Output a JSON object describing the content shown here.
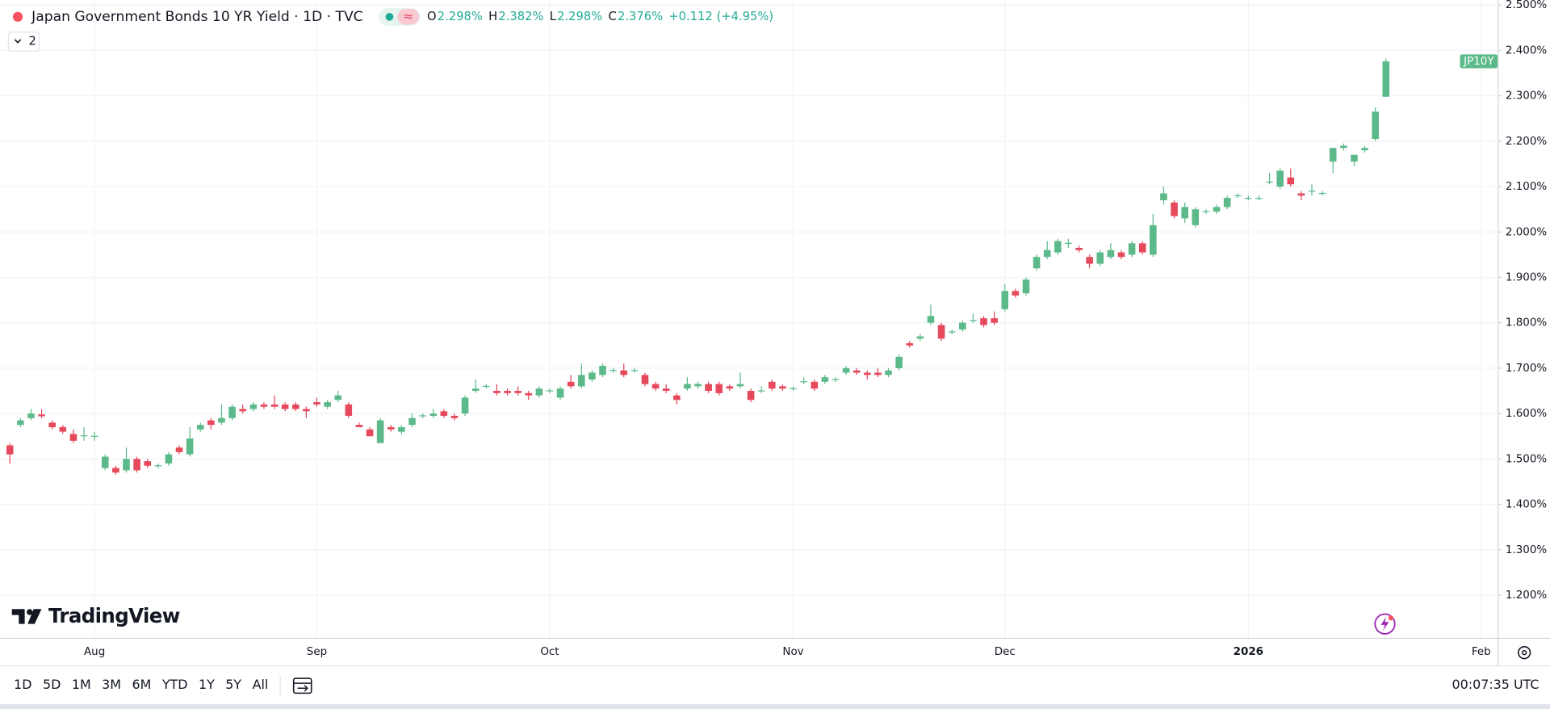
{
  "header": {
    "title": "Japan Government Bonds 10 YR Yield · 1D · TVC",
    "indicator_count": "2",
    "ohlc": [
      {
        "label": "O",
        "value": "2.298%"
      },
      {
        "label": "H",
        "value": "2.382%"
      },
      {
        "label": "L",
        "value": "2.298%"
      },
      {
        "label": "C",
        "value": "2.376%"
      }
    ],
    "change": "+0.112",
    "change_pct": "(+4.95%)"
  },
  "brand": "TradingView",
  "toolbar": {
    "ranges": [
      "1D",
      "5D",
      "1M",
      "3M",
      "6M",
      "YTD",
      "1Y",
      "5Y",
      "All"
    ],
    "clock": "00:07:35 UTC"
  },
  "chart_data": {
    "type": "candlestick",
    "symbol": "JP10Y",
    "up_color": "#5bb98a",
    "down_color": "#e5495b",
    "grid": true,
    "ylim": [
      1.106,
      2.511
    ],
    "yticks": [
      {
        "value": 1.2,
        "label": "1.200%"
      },
      {
        "value": 1.3,
        "label": "1.300%"
      },
      {
        "value": 1.4,
        "label": "1.400%"
      },
      {
        "value": 1.5,
        "label": "1.500%"
      },
      {
        "value": 1.6,
        "label": "1.600%"
      },
      {
        "value": 1.7,
        "label": "1.700%"
      },
      {
        "value": 1.8,
        "label": "1.800%"
      },
      {
        "value": 1.9,
        "label": "1.900%"
      },
      {
        "value": 2.0,
        "label": "2.000%"
      },
      {
        "value": 2.1,
        "label": "2.100%"
      },
      {
        "value": 2.2,
        "label": "2.200%"
      },
      {
        "value": 2.3,
        "label": "2.300%"
      },
      {
        "value": 2.4,
        "label": "2.400%"
      },
      {
        "value": 2.5,
        "label": "2.500%"
      }
    ],
    "categories": [
      null,
      null,
      null,
      null,
      null,
      null,
      null,
      null,
      "Aug",
      null,
      null,
      null,
      null,
      null,
      null,
      null,
      null,
      null,
      null,
      null,
      null,
      null,
      null,
      null,
      null,
      null,
      null,
      null,
      null,
      "Sep",
      null,
      null,
      null,
      null,
      null,
      null,
      null,
      null,
      null,
      null,
      null,
      null,
      null,
      null,
      null,
      null,
      null,
      null,
      null,
      null,
      null,
      "Oct",
      null,
      null,
      null,
      null,
      null,
      null,
      null,
      null,
      null,
      null,
      null,
      null,
      null,
      null,
      null,
      null,
      null,
      null,
      null,
      null,
      null,
      null,
      "Nov",
      null,
      null,
      null,
      null,
      null,
      null,
      null,
      null,
      null,
      null,
      null,
      null,
      null,
      null,
      null,
      null,
      null,
      null,
      null,
      "Dec",
      null,
      null,
      null,
      null,
      null,
      null,
      null,
      null,
      null,
      null,
      null,
      null,
      null,
      null,
      null,
      null,
      null,
      null,
      null,
      null,
      null,
      null,
      "2026",
      null,
      null,
      null,
      null,
      null,
      null,
      null,
      null,
      null,
      null,
      null,
      null,
      null,
      null,
      null,
      null,
      null,
      null,
      null,
      null,
      null,
      "Feb",
      null
    ],
    "open": [
      1.53,
      1.575,
      1.59,
      1.598,
      1.58,
      1.57,
      1.555,
      1.55,
      1.55,
      1.48,
      1.48,
      1.475,
      1.5,
      1.495,
      1.485,
      1.49,
      1.525,
      1.51,
      1.565,
      1.585,
      1.58,
      1.59,
      1.61,
      1.61,
      1.62,
      1.62,
      1.62,
      1.62,
      1.61,
      1.625,
      1.615,
      1.63,
      1.62,
      1.575,
      1.565,
      1.535,
      1.57,
      1.56,
      1.575,
      1.595,
      1.595,
      1.605,
      1.595,
      1.6,
      1.65,
      1.66,
      1.65,
      1.65,
      1.65,
      1.645,
      1.64,
      1.65,
      1.635,
      1.67,
      1.66,
      1.675,
      1.685,
      1.695,
      1.695,
      1.695,
      1.685,
      1.665,
      1.655,
      1.64,
      1.655,
      1.66,
      1.665,
      1.665,
      1.66,
      1.66,
      1.65,
      1.65,
      1.67,
      1.66,
      1.655,
      1.67,
      1.67,
      1.67,
      1.675,
      1.69,
      1.695,
      1.69,
      1.69,
      1.685,
      1.7,
      1.755,
      1.765,
      1.8,
      1.795,
      1.78,
      1.785,
      1.805,
      1.81,
      1.81,
      1.83,
      1.87,
      1.865,
      1.92,
      1.945,
      1.955,
      1.975,
      1.965,
      1.945,
      1.93,
      1.945,
      1.955,
      1.95,
      1.975,
      1.95,
      2.07,
      2.065,
      2.03,
      2.015,
      2.045,
      2.045,
      2.055,
      2.08,
      2.075,
      2.075,
      2.11,
      2.1,
      2.12,
      2.085,
      2.09,
      2.085,
      2.155,
      2.185,
      2.155,
      2.18,
      2.205,
      2.298,
      null,
      null,
      null,
      null,
      null,
      null,
      null,
      null,
      null,
      null
    ],
    "high": [
      1.535,
      1.59,
      1.61,
      1.61,
      1.585,
      1.575,
      1.565,
      1.57,
      1.56,
      1.51,
      1.485,
      1.525,
      1.505,
      1.5,
      1.49,
      1.515,
      1.53,
      1.57,
      1.58,
      1.59,
      1.62,
      1.62,
      1.62,
      1.625,
      1.625,
      1.64,
      1.625,
      1.625,
      1.615,
      1.635,
      1.63,
      1.65,
      1.625,
      1.58,
      1.57,
      1.59,
      1.575,
      1.575,
      1.6,
      1.6,
      1.61,
      1.61,
      1.6,
      1.64,
      1.675,
      1.665,
      1.665,
      1.655,
      1.66,
      1.65,
      1.66,
      1.655,
      1.66,
      1.685,
      1.71,
      1.695,
      1.71,
      1.7,
      1.71,
      1.7,
      1.69,
      1.67,
      1.665,
      1.645,
      1.68,
      1.67,
      1.67,
      1.67,
      1.665,
      1.69,
      1.655,
      1.66,
      1.675,
      1.665,
      1.66,
      1.68,
      1.675,
      1.685,
      1.68,
      1.705,
      1.7,
      1.695,
      1.7,
      1.7,
      1.73,
      1.76,
      1.775,
      1.84,
      1.8,
      1.785,
      1.805,
      1.82,
      1.815,
      1.825,
      1.885,
      1.875,
      1.9,
      1.95,
      1.98,
      1.985,
      1.985,
      1.97,
      1.95,
      1.96,
      1.975,
      1.96,
      1.98,
      1.98,
      2.04,
      2.1,
      2.07,
      2.065,
      2.055,
      2.05,
      2.06,
      2.08,
      2.085,
      2.08,
      2.08,
      2.13,
      2.14,
      2.14,
      2.09,
      2.105,
      2.09,
      2.185,
      2.195,
      2.17,
      2.19,
      2.275,
      2.382,
      null,
      null,
      null,
      null,
      null,
      null,
      null,
      null,
      null,
      null
    ],
    "low": [
      1.49,
      1.57,
      1.585,
      1.59,
      1.565,
      1.555,
      1.535,
      1.54,
      1.54,
      1.475,
      1.465,
      1.47,
      1.47,
      1.48,
      1.48,
      1.485,
      1.51,
      1.505,
      1.56,
      1.565,
      1.575,
      1.585,
      1.6,
      1.605,
      1.61,
      1.61,
      1.605,
      1.605,
      1.59,
      1.615,
      1.61,
      1.625,
      1.59,
      1.57,
      1.55,
      1.535,
      1.56,
      1.555,
      1.57,
      1.59,
      1.59,
      1.59,
      1.585,
      1.595,
      1.645,
      1.655,
      1.64,
      1.64,
      1.64,
      1.63,
      1.635,
      1.645,
      1.63,
      1.655,
      1.655,
      1.67,
      1.68,
      1.69,
      1.68,
      1.69,
      1.66,
      1.65,
      1.645,
      1.62,
      1.65,
      1.655,
      1.645,
      1.64,
      1.65,
      1.655,
      1.625,
      1.645,
      1.65,
      1.65,
      1.65,
      1.665,
      1.65,
      1.665,
      1.67,
      1.685,
      1.685,
      1.675,
      1.68,
      1.68,
      1.695,
      1.745,
      1.76,
      1.795,
      1.76,
      1.775,
      1.78,
      1.8,
      1.79,
      1.795,
      1.825,
      1.855,
      1.86,
      1.915,
      1.94,
      1.95,
      1.965,
      1.955,
      1.92,
      1.925,
      1.94,
      1.94,
      1.945,
      1.95,
      1.945,
      2.06,
      2.03,
      2.02,
      2.01,
      2.04,
      2.04,
      2.05,
      2.075,
      2.07,
      2.07,
      2.105,
      2.095,
      2.1,
      2.07,
      2.08,
      2.08,
      2.13,
      2.18,
      2.145,
      2.175,
      2.2,
      2.298,
      null,
      null,
      null,
      null,
      null,
      null,
      null,
      null,
      null,
      null
    ],
    "close": [
      1.51,
      1.585,
      1.6,
      1.594,
      1.57,
      1.56,
      1.54,
      1.552,
      1.551,
      1.505,
      1.47,
      1.5,
      1.475,
      1.485,
      1.486,
      1.51,
      1.515,
      1.545,
      1.575,
      1.575,
      1.59,
      1.615,
      1.605,
      1.62,
      1.615,
      1.615,
      1.61,
      1.61,
      1.605,
      1.62,
      1.625,
      1.64,
      1.595,
      1.57,
      1.55,
      1.585,
      1.565,
      1.57,
      1.59,
      1.596,
      1.6,
      1.595,
      1.59,
      1.635,
      1.655,
      1.661,
      1.645,
      1.645,
      1.645,
      1.64,
      1.655,
      1.651,
      1.655,
      1.66,
      1.685,
      1.69,
      1.705,
      1.696,
      1.685,
      1.696,
      1.665,
      1.655,
      1.65,
      1.63,
      1.665,
      1.665,
      1.65,
      1.645,
      1.655,
      1.665,
      1.63,
      1.651,
      1.655,
      1.655,
      1.656,
      1.671,
      1.655,
      1.68,
      1.676,
      1.7,
      1.69,
      1.685,
      1.685,
      1.695,
      1.725,
      1.75,
      1.77,
      1.815,
      1.765,
      1.781,
      1.8,
      1.806,
      1.795,
      1.8,
      1.87,
      1.86,
      1.895,
      1.945,
      1.96,
      1.98,
      1.976,
      1.96,
      1.93,
      1.955,
      1.96,
      1.945,
      1.975,
      1.955,
      2.015,
      2.085,
      2.035,
      2.055,
      2.05,
      2.046,
      2.055,
      2.075,
      2.081,
      2.075,
      2.075,
      2.111,
      2.135,
      2.105,
      2.08,
      2.091,
      2.086,
      2.185,
      2.19,
      2.17,
      2.185,
      2.265,
      2.376,
      null,
      null,
      null,
      null,
      null,
      null,
      null,
      null,
      null,
      null
    ]
  }
}
